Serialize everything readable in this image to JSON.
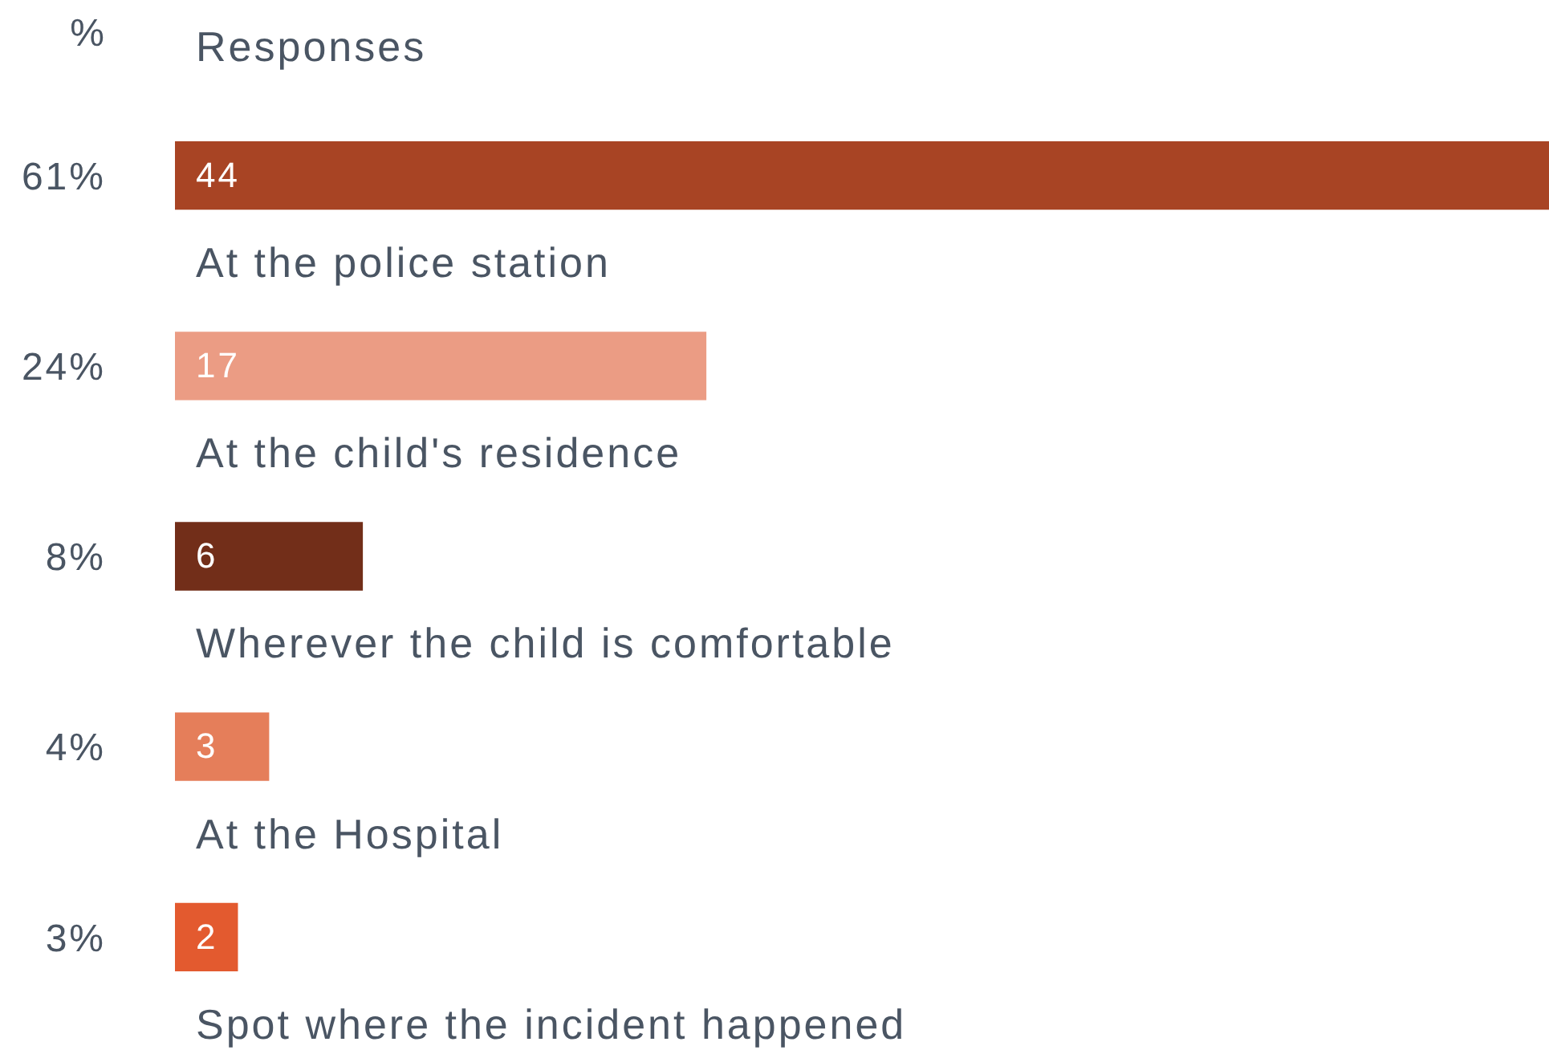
{
  "chart_data": {
    "type": "bar",
    "orientation": "horizontal",
    "title": "Responses",
    "ylabel": "%",
    "categories": [
      "At the police station",
      "At the child's residence",
      "Wherever the child is comfortable",
      "At the Hospital",
      "Spot where the incident happened"
    ],
    "values": [
      44,
      17,
      6,
      3,
      2
    ],
    "colors": [
      "#a84424",
      "#eb9c84",
      "#722e19",
      "#e57e5a",
      "#e35a2f"
    ],
    "tick_labels": false,
    "data_labels": true,
    "annotations": [
      "61%",
      "24%",
      "8%",
      "4%",
      "3%"
    ]
  }
}
